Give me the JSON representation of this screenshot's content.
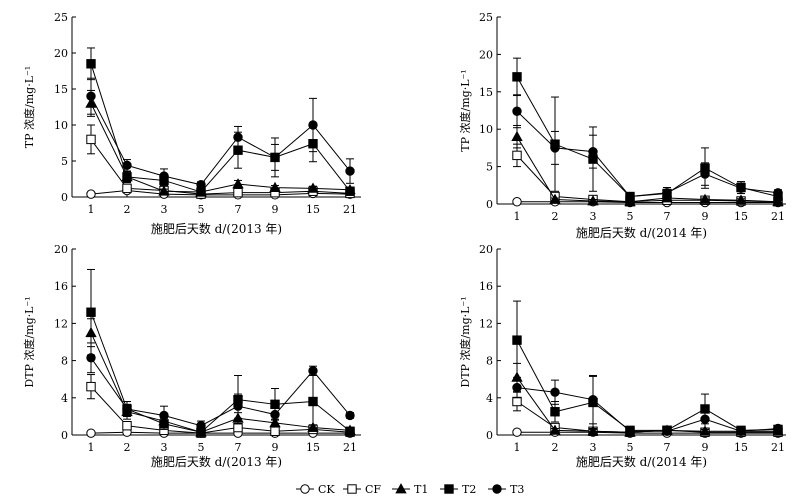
{
  "chart_data": [
    {
      "type": "line",
      "xlabel": "施肥后天数 d/(2013 年)",
      "ylabel": "TP 浓度/mg·L⁻¹",
      "categories": [
        "1",
        "2",
        "3",
        "5",
        "7",
        "9",
        "15",
        "21"
      ],
      "ylim": [
        0,
        25
      ],
      "yticks": [
        0,
        5,
        10,
        15,
        20,
        25
      ],
      "grid": false,
      "series": [
        {
          "name": "CK",
          "marker": "open-circle",
          "values": [
            0.4,
            0.9,
            0.4,
            0.3,
            0.3,
            0.3,
            0.5,
            0.4
          ],
          "errors": [
            0,
            0,
            0,
            0,
            0,
            0,
            0,
            0
          ]
        },
        {
          "name": "CF",
          "marker": "open-square",
          "values": [
            8,
            1.2,
            0.9,
            0.4,
            0.6,
            0.6,
            0.8,
            0.5
          ],
          "errors": [
            2,
            0.3,
            0.3,
            0.1,
            0.2,
            0.2,
            0.3,
            0.2
          ]
        },
        {
          "name": "T1",
          "marker": "filled-triangle",
          "values": [
            13,
            2.8,
            0.8,
            0.7,
            1.8,
            1.3,
            1.2,
            1
          ],
          "errors": [
            1.8,
            0.8,
            0.3,
            0.2,
            0.5,
            0.3,
            0.3,
            0.2
          ]
        },
        {
          "name": "T2",
          "marker": "filled-square",
          "values": [
            18.5,
            2.8,
            2.3,
            0.7,
            6.5,
            5.5,
            7.4,
            0.8
          ],
          "errors": [
            2.2,
            0.7,
            0.7,
            0.3,
            2.5,
            1.8,
            2.5,
            0.4
          ]
        },
        {
          "name": "T3",
          "marker": "filled-circle",
          "values": [
            14,
            4.4,
            2.9,
            1.7,
            8.3,
            5.5,
            10,
            3.6
          ],
          "errors": [
            2.5,
            0.8,
            1,
            0.4,
            1.5,
            2.7,
            3.7,
            1.7
          ]
        }
      ]
    },
    {
      "type": "line",
      "xlabel": "施肥后天数 d/(2014 年)",
      "ylabel": "TP 浓度/mg·L⁻¹",
      "categories": [
        "1",
        "2",
        "3",
        "5",
        "7",
        "9",
        "15",
        "21"
      ],
      "ylim": [
        0,
        25
      ],
      "yticks": [
        0,
        5,
        10,
        15,
        20,
        25
      ],
      "grid": false,
      "series": [
        {
          "name": "CK",
          "marker": "open-circle",
          "values": [
            0.3,
            0.3,
            0.3,
            0.2,
            0.2,
            0.2,
            0.2,
            0.2
          ],
          "errors": [
            0,
            0,
            0,
            0,
            0,
            0,
            0,
            0
          ]
        },
        {
          "name": "CF",
          "marker": "open-square",
          "values": [
            6.5,
            1,
            0.6,
            0.3,
            0.5,
            0.5,
            0.4,
            0.3
          ],
          "errors": [
            1.5,
            0.3,
            0.2,
            0.1,
            0.2,
            0.2,
            0.1,
            0.1
          ]
        },
        {
          "name": "T1",
          "marker": "filled-triangle",
          "values": [
            9,
            0.6,
            0.4,
            0.3,
            0.8,
            0.6,
            0.5,
            0.3
          ],
          "errors": [
            1.5,
            0.2,
            0.2,
            0.1,
            0.3,
            0.2,
            0.2,
            0.1
          ]
        },
        {
          "name": "T2",
          "marker": "filled-square",
          "values": [
            17,
            8,
            6,
            1,
            1.4,
            4.8,
            2.2,
            1
          ],
          "errors": [
            2.5,
            6.3,
            4.3,
            0.3,
            0.8,
            2.7,
            0.8,
            0.4
          ]
        },
        {
          "name": "T3",
          "marker": "filled-circle",
          "values": [
            12.4,
            7.5,
            7,
            1,
            1.5,
            4,
            2.1,
            1.5
          ],
          "errors": [
            2.2,
            2.2,
            2.2,
            0.3,
            0.7,
            1.5,
            0.7,
            0.4
          ]
        }
      ]
    },
    {
      "type": "line",
      "xlabel": "施肥后天数 d/(2013 年)",
      "ylabel": "DTP 浓度/mg·L⁻¹",
      "categories": [
        "1",
        "2",
        "3",
        "5",
        "7",
        "9",
        "15",
        "21"
      ],
      "ylim": [
        0,
        20
      ],
      "yticks": [
        0,
        4,
        8,
        12,
        16,
        20
      ],
      "grid": false,
      "series": [
        {
          "name": "CK",
          "marker": "open-circle",
          "values": [
            0.2,
            0.3,
            0.2,
            0.2,
            0.2,
            0.2,
            0.2,
            0.2
          ],
          "errors": [
            0,
            0,
            0,
            0,
            0,
            0,
            0,
            0
          ]
        },
        {
          "name": "CF",
          "marker": "open-square",
          "values": [
            5.2,
            1,
            0.5,
            0.2,
            0.8,
            0.4,
            0.6,
            0.3
          ],
          "errors": [
            1.3,
            0.3,
            0.2,
            0.1,
            0.3,
            0.2,
            0.2,
            0.1
          ]
        },
        {
          "name": "T1",
          "marker": "filled-triangle",
          "values": [
            11,
            2.5,
            1.5,
            0.3,
            1.8,
            1.3,
            0.8,
            0.5
          ],
          "errors": [
            1.5,
            0.8,
            0.5,
            0.2,
            0.6,
            0.4,
            0.3,
            0.2
          ]
        },
        {
          "name": "T2",
          "marker": "filled-square",
          "values": [
            13.2,
            2.8,
            1.2,
            0.3,
            3.8,
            3.3,
            3.6,
            0.4
          ],
          "errors": [
            4.6,
            0.8,
            0.6,
            0.2,
            2.6,
            1.7,
            3.2,
            0.2
          ]
        },
        {
          "name": "T3",
          "marker": "filled-circle",
          "values": [
            8.3,
            2.8,
            2.1,
            1,
            3.1,
            2.2,
            6.9,
            2.1
          ],
          "errors": [
            1.6,
            0.8,
            1,
            0.5,
            1.3,
            1.2,
            0.5,
            0.3
          ]
        }
      ]
    },
    {
      "type": "line",
      "xlabel": "施肥后天数 d/(2014 年)",
      "ylabel": "DTP 浓度/mg·L⁻¹",
      "categories": [
        "1",
        "2",
        "3",
        "5",
        "7",
        "9",
        "15",
        "21"
      ],
      "ylim": [
        0,
        20
      ],
      "yticks": [
        0,
        4,
        8,
        12,
        16,
        20
      ],
      "grid": false,
      "series": [
        {
          "name": "CK",
          "marker": "open-circle",
          "values": [
            0.3,
            0.3,
            0.3,
            0.2,
            0.2,
            0.2,
            0.2,
            0.2
          ],
          "errors": [
            0,
            0,
            0,
            0,
            0,
            0,
            0,
            0
          ]
        },
        {
          "name": "CF",
          "marker": "open-square",
          "values": [
            3.6,
            0.8,
            0.4,
            0.3,
            0.5,
            0.3,
            0.3,
            0.3
          ],
          "errors": [
            1,
            0.3,
            0.2,
            0.1,
            0.2,
            0.1,
            0.1,
            0.1
          ]
        },
        {
          "name": "T1",
          "marker": "filled-triangle",
          "values": [
            6.2,
            0.5,
            0.4,
            0.3,
            0.5,
            0.4,
            0.4,
            0.4
          ],
          "errors": [
            1.5,
            0.2,
            0.2,
            0.1,
            0.2,
            0.2,
            0.1,
            0.1
          ]
        },
        {
          "name": "T2",
          "marker": "filled-square",
          "values": [
            10.2,
            2.5,
            3.5,
            0.5,
            0.5,
            2.8,
            0.5,
            0.6
          ],
          "errors": [
            4.2,
            1.1,
            2.8,
            0.3,
            0.3,
            1.6,
            0.4,
            0.2
          ]
        },
        {
          "name": "T3",
          "marker": "filled-circle",
          "values": [
            5.1,
            4.6,
            3.8,
            0.4,
            0.4,
            1.7,
            0.4,
            0.7
          ],
          "errors": [
            1.1,
            1.3,
            2.6,
            0.2,
            0.2,
            1.1,
            0.3,
            0.2
          ]
        }
      ]
    }
  ],
  "legend": [
    {
      "label": "CK",
      "marker": "open-circle"
    },
    {
      "label": "CF",
      "marker": "open-square"
    },
    {
      "label": "T1",
      "marker": "filled-triangle"
    },
    {
      "label": "T2",
      "marker": "filled-square"
    },
    {
      "label": "T3",
      "marker": "filled-circle"
    }
  ]
}
